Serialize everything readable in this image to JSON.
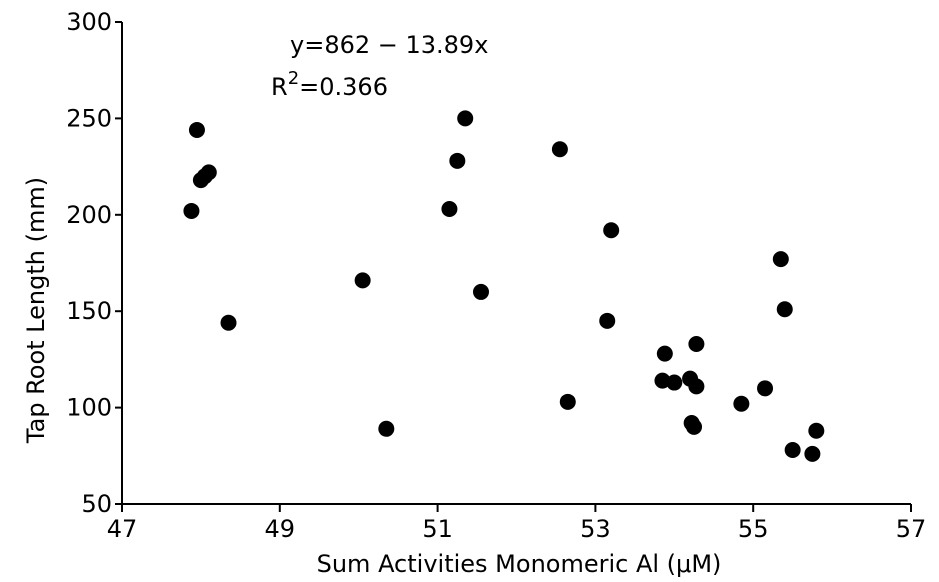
{
  "chart_data": {
    "type": "scatter",
    "xlabel": "Sum Activities Monomeric Al (μM)",
    "ylabel": "Tap Root Length (mm)",
    "xlim": [
      47,
      57
    ],
    "ylim": [
      50,
      300
    ],
    "x_ticks": [
      47,
      49,
      51,
      53,
      55,
      57
    ],
    "y_ticks": [
      50,
      100,
      150,
      200,
      250,
      300
    ],
    "grid": false,
    "annotations": {
      "equation": "y=862 − 13.89x",
      "r2_prefix": "R",
      "r2_sup": "2",
      "r2_value": "=0.366"
    },
    "series": [
      {
        "points": [
          {
            "x": 47.88,
            "y": 202
          },
          {
            "x": 47.95,
            "y": 244
          },
          {
            "x": 48.0,
            "y": 218
          },
          {
            "x": 48.05,
            "y": 220
          },
          {
            "x": 48.1,
            "y": 222
          },
          {
            "x": 48.35,
            "y": 144
          },
          {
            "x": 50.05,
            "y": 166
          },
          {
            "x": 50.35,
            "y": 89
          },
          {
            "x": 51.15,
            "y": 203
          },
          {
            "x": 51.25,
            "y": 228
          },
          {
            "x": 51.35,
            "y": 250
          },
          {
            "x": 51.55,
            "y": 160
          },
          {
            "x": 52.55,
            "y": 234
          },
          {
            "x": 52.65,
            "y": 103
          },
          {
            "x": 53.15,
            "y": 145
          },
          {
            "x": 53.2,
            "y": 192
          },
          {
            "x": 53.85,
            "y": 114
          },
          {
            "x": 53.88,
            "y": 128
          },
          {
            "x": 54.0,
            "y": 113
          },
          {
            "x": 54.2,
            "y": 115
          },
          {
            "x": 54.22,
            "y": 92
          },
          {
            "x": 54.25,
            "y": 90
          },
          {
            "x": 54.28,
            "y": 111
          },
          {
            "x": 54.28,
            "y": 133
          },
          {
            "x": 54.85,
            "y": 102
          },
          {
            "x": 55.15,
            "y": 110
          },
          {
            "x": 55.35,
            "y": 177
          },
          {
            "x": 55.4,
            "y": 151
          },
          {
            "x": 55.5,
            "y": 78
          },
          {
            "x": 55.75,
            "y": 76
          },
          {
            "x": 55.8,
            "y": 88
          }
        ]
      }
    ]
  }
}
